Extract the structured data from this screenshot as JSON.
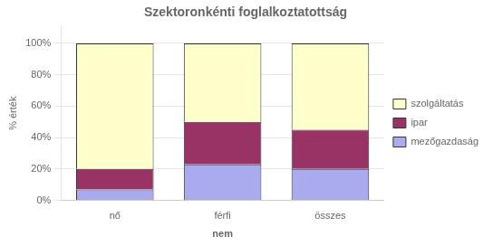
{
  "chart_data": {
    "type": "bar",
    "title": "Szektoronkénti foglalkoztatottság",
    "xlabel": "nem",
    "ylabel": "% érték",
    "categories": [
      "nő",
      "férfi",
      "összes"
    ],
    "series": [
      {
        "name": "mezőgazdaság",
        "color": "#aaaaee",
        "values": [
          7,
          23,
          20
        ]
      },
      {
        "name": "ipar",
        "color": "#993366",
        "values": [
          13,
          27,
          25
        ]
      },
      {
        "name": "szolgáltatás",
        "color": "#ffffcc",
        "values": [
          80,
          50,
          55
        ]
      }
    ],
    "stacked": true,
    "ylim": [
      0,
      111
    ],
    "yticks": [
      {
        "value": 0,
        "label": "0%"
      },
      {
        "value": 20,
        "label": "20%"
      },
      {
        "value": 40,
        "label": "40%"
      },
      {
        "value": 60,
        "label": "60%"
      },
      {
        "value": 80,
        "label": "80%"
      },
      {
        "value": 100,
        "label": "100%"
      }
    ],
    "grid": true,
    "legend": "right"
  }
}
